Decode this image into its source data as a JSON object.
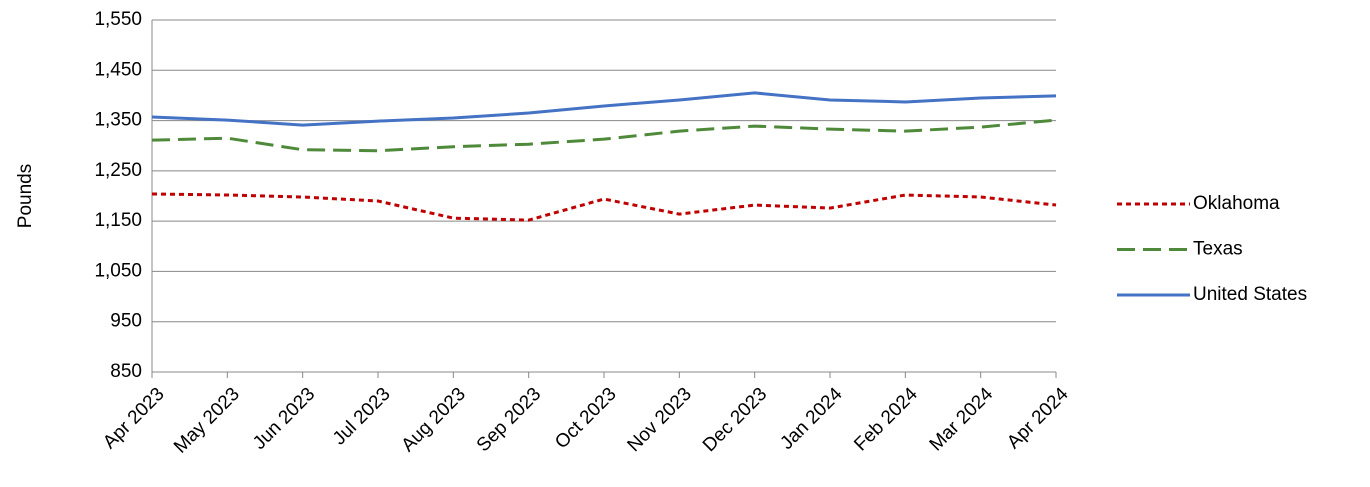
{
  "chart_data": {
    "type": "line",
    "y_label": "Pounds",
    "categories": [
      "Apr 2023",
      "May 2023",
      "Jun 2023",
      "Jul 2023",
      "Aug 2023",
      "Sep 2023",
      "Oct 2023",
      "Nov 2023",
      "Dec 2023",
      "Jan 2024",
      "Feb 2024",
      "Mar 2024",
      "Apr 2024"
    ],
    "series": [
      {
        "name": "Oklahoma",
        "color": "#c00000",
        "dash": "dotted",
        "values": [
          1204,
          1202,
          1198,
          1190,
          1156,
          1152,
          1194,
          1164,
          1182,
          1176,
          1202,
          1198,
          1182
        ]
      },
      {
        "name": "Texas",
        "color": "#4f8a3b",
        "dash": "dashed",
        "values": [
          1311,
          1315,
          1292,
          1290,
          1298,
          1303,
          1313,
          1329,
          1339,
          1333,
          1329,
          1337,
          1351
        ]
      },
      {
        "name": "United States",
        "color": "#4472c4",
        "dash": "solid",
        "values": [
          1357,
          1351,
          1341,
          1349,
          1355,
          1365,
          1379,
          1391,
          1405,
          1391,
          1387,
          1395,
          1399
        ]
      }
    ],
    "ylim": [
      850,
      1550
    ],
    "yticks": [
      850,
      950,
      {
        "value": 1050,
        "label": "1,050"
      },
      {
        "value": 1150,
        "label": "1,150"
      },
      {
        "value": 1250,
        "label": "1,250"
      },
      {
        "value": 1350,
        "label": "1,350"
      },
      {
        "value": 1450,
        "label": "1,450"
      },
      {
        "value": 1550,
        "label": "1,550"
      }
    ],
    "grid": true,
    "legend": "right"
  }
}
